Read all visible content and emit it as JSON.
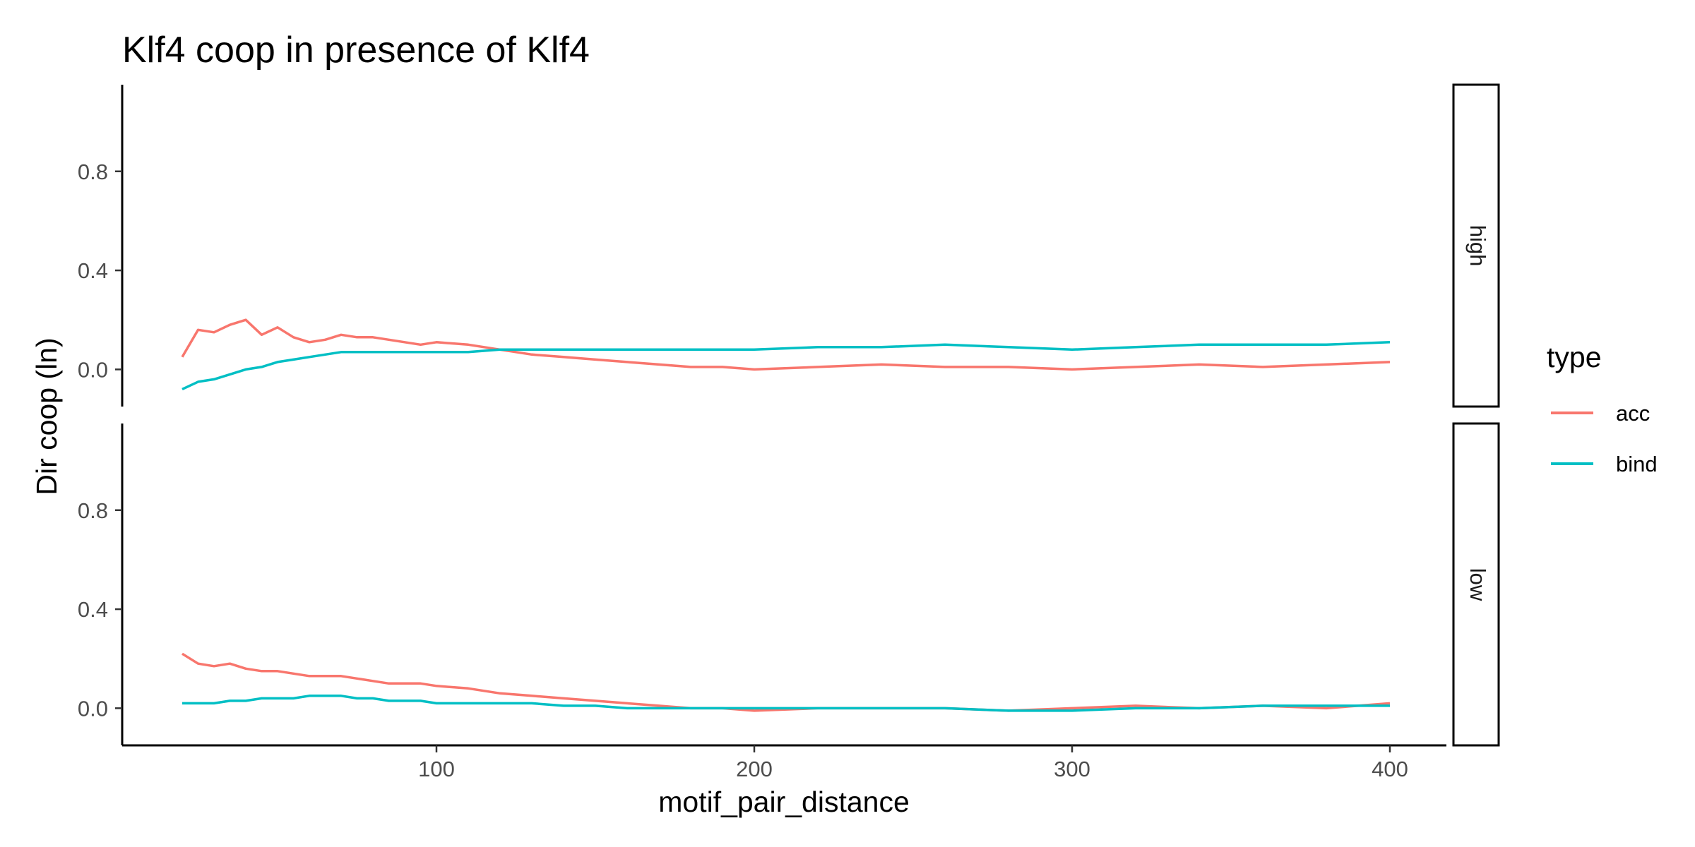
{
  "chart_data": {
    "type": "line",
    "title": "Klf4 coop in presence of Klf4",
    "xlabel": "motif_pair_distance",
    "ylabel": "Dir coop (ln)",
    "xlim": [
      20,
      400
    ],
    "ylim": [
      -0.15,
      1.15
    ],
    "x_ticks": [
      "100",
      "200",
      "300",
      "400"
    ],
    "y_ticks": [
      "0.0",
      "0.4",
      "0.8"
    ],
    "grid": false,
    "legend": {
      "title": "type",
      "position": "right",
      "items": [
        "acc",
        "bind"
      ]
    },
    "colors": {
      "acc": "#F8766D",
      "bind": "#00BFC4"
    },
    "facets": [
      {
        "label": "high",
        "series": [
          {
            "name": "acc",
            "x": [
              20,
              25,
              30,
              35,
              40,
              45,
              50,
              55,
              60,
              65,
              70,
              75,
              80,
              85,
              90,
              95,
              100,
              110,
              120,
              130,
              140,
              150,
              160,
              170,
              180,
              190,
              200,
              220,
              240,
              260,
              280,
              300,
              320,
              340,
              360,
              380,
              400
            ],
            "values": [
              0.05,
              0.16,
              0.15,
              0.18,
              0.2,
              0.14,
              0.17,
              0.13,
              0.11,
              0.12,
              0.14,
              0.13,
              0.13,
              0.12,
              0.11,
              0.1,
              0.11,
              0.1,
              0.08,
              0.06,
              0.05,
              0.04,
              0.03,
              0.02,
              0.01,
              0.01,
              0.0,
              0.01,
              0.02,
              0.01,
              0.01,
              0.0,
              0.01,
              0.02,
              0.01,
              0.02,
              0.03
            ]
          },
          {
            "name": "bind",
            "x": [
              20,
              25,
              30,
              35,
              40,
              45,
              50,
              55,
              60,
              65,
              70,
              75,
              80,
              85,
              90,
              95,
              100,
              110,
              120,
              130,
              140,
              150,
              160,
              170,
              180,
              190,
              200,
              220,
              240,
              260,
              280,
              300,
              320,
              340,
              360,
              380,
              400
            ],
            "values": [
              -0.08,
              -0.05,
              -0.04,
              -0.02,
              0.0,
              0.01,
              0.03,
              0.04,
              0.05,
              0.06,
              0.07,
              0.07,
              0.07,
              0.07,
              0.07,
              0.07,
              0.07,
              0.07,
              0.08,
              0.08,
              0.08,
              0.08,
              0.08,
              0.08,
              0.08,
              0.08,
              0.08,
              0.09,
              0.09,
              0.1,
              0.09,
              0.08,
              0.09,
              0.1,
              0.1,
              0.1,
              0.11
            ]
          }
        ]
      },
      {
        "label": "low",
        "series": [
          {
            "name": "acc",
            "x": [
              20,
              25,
              30,
              35,
              40,
              45,
              50,
              55,
              60,
              65,
              70,
              75,
              80,
              85,
              90,
              95,
              100,
              110,
              120,
              130,
              140,
              150,
              160,
              170,
              180,
              190,
              200,
              220,
              240,
              260,
              280,
              300,
              320,
              340,
              360,
              380,
              400
            ],
            "values": [
              0.22,
              0.18,
              0.17,
              0.18,
              0.16,
              0.15,
              0.15,
              0.14,
              0.13,
              0.13,
              0.13,
              0.12,
              0.11,
              0.1,
              0.1,
              0.1,
              0.09,
              0.08,
              0.06,
              0.05,
              0.04,
              0.03,
              0.02,
              0.01,
              0.0,
              0.0,
              -0.01,
              0.0,
              0.0,
              0.0,
              -0.01,
              0.0,
              0.01,
              0.0,
              0.01,
              0.0,
              0.02
            ]
          },
          {
            "name": "bind",
            "x": [
              20,
              25,
              30,
              35,
              40,
              45,
              50,
              55,
              60,
              65,
              70,
              75,
              80,
              85,
              90,
              95,
              100,
              110,
              120,
              130,
              140,
              150,
              160,
              170,
              180,
              190,
              200,
              220,
              240,
              260,
              280,
              300,
              320,
              340,
              360,
              380,
              400
            ],
            "values": [
              0.02,
              0.02,
              0.02,
              0.03,
              0.03,
              0.04,
              0.04,
              0.04,
              0.05,
              0.05,
              0.05,
              0.04,
              0.04,
              0.03,
              0.03,
              0.03,
              0.02,
              0.02,
              0.02,
              0.02,
              0.01,
              0.01,
              0.0,
              0.0,
              0.0,
              0.0,
              0.0,
              0.0,
              0.0,
              0.0,
              -0.01,
              -0.01,
              0.0,
              0.0,
              0.01,
              0.01,
              0.01
            ]
          }
        ]
      }
    ]
  }
}
